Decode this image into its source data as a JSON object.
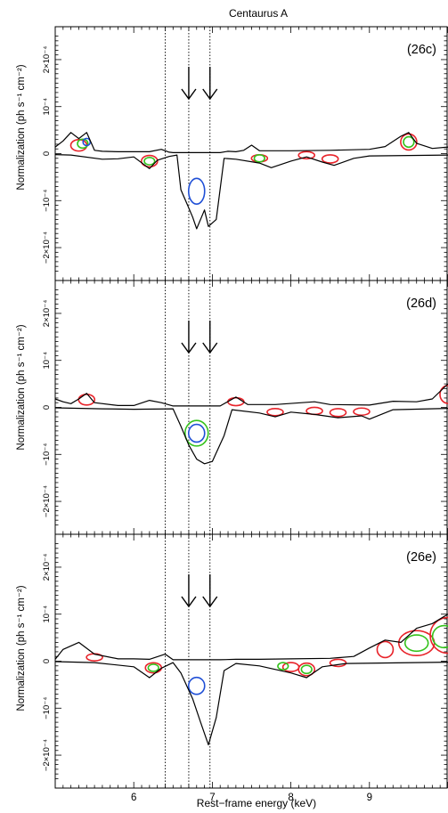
{
  "figure": {
    "title": "Centaurus A",
    "xlabel": "Rest−frame energy (keV)",
    "ylabel": "Normalization (ph s⁻¹ cm⁻²)"
  },
  "chart_data": [
    {
      "type": "line",
      "panel_label": "(26c)",
      "xlabel": "Rest−frame energy (keV)",
      "ylabel": "Normalization (ph s⁻¹ cm⁻²)",
      "xlim": [
        5.0,
        10.0
      ],
      "ylim": [
        -0.00027,
        0.00027
      ],
      "x_ticks": [
        "6",
        "7",
        "8",
        "9"
      ],
      "y_ticks": [
        "2×10⁻⁴",
        "10⁻⁴",
        "0",
        "−10⁻⁴",
        "−2×10⁻⁴"
      ],
      "vertical_lines_keV": [
        6.4,
        6.7,
        6.97
      ],
      "arrows_keV": [
        6.7,
        6.97
      ],
      "upper_envelope": [
        [
          5.0,
          1.4e-05
        ],
        [
          5.1,
          2.7e-05
        ],
        [
          5.2,
          4.5e-05
        ],
        [
          5.3,
          3.2e-05
        ],
        [
          5.4,
          4.5e-05
        ],
        [
          5.5,
          7e-06
        ],
        [
          5.6,
          5e-06
        ],
        [
          5.8,
          4e-06
        ],
        [
          6.0,
          4e-06
        ],
        [
          6.2,
          4e-06
        ],
        [
          6.35,
          9e-06
        ],
        [
          6.45,
          3e-06
        ],
        [
          6.5,
          2e-06
        ],
        [
          7.1,
          2e-06
        ],
        [
          7.2,
          5e-06
        ],
        [
          7.3,
          4e-06
        ],
        [
          7.4,
          7e-06
        ],
        [
          7.5,
          1.8e-05
        ],
        [
          7.6,
          6e-06
        ],
        [
          8.0,
          6e-06
        ],
        [
          8.5,
          7e-06
        ],
        [
          9.0,
          9e-06
        ],
        [
          9.2,
          1.5e-05
        ],
        [
          9.4,
          3.7e-05
        ],
        [
          9.5,
          4.5e-05
        ],
        [
          9.6,
          2.2e-05
        ],
        [
          9.8,
          1.1e-05
        ],
        [
          10.0,
          1.4e-05
        ]
      ],
      "lower_envelope": [
        [
          5.0,
          -2e-06
        ],
        [
          5.2,
          -3e-06
        ],
        [
          5.6,
          -1.2e-05
        ],
        [
          5.8,
          -1.1e-05
        ],
        [
          6.0,
          -7e-06
        ],
        [
          6.2,
          -3.2e-05
        ],
        [
          6.3,
          -1.4e-05
        ],
        [
          6.45,
          -6e-06
        ],
        [
          6.55,
          -3e-06
        ],
        [
          6.6,
          -7.7e-05
        ],
        [
          6.68,
          -0.000108
        ],
        [
          6.75,
          -0.000135
        ],
        [
          6.8,
          -0.00016
        ],
        [
          6.9,
          -0.00012
        ],
        [
          6.95,
          -0.000155
        ],
        [
          7.05,
          -0.00014
        ],
        [
          7.15,
          -1e-05
        ],
        [
          7.3,
          -1.2e-05
        ],
        [
          7.6,
          -2e-05
        ],
        [
          7.75,
          -3e-05
        ],
        [
          8.0,
          -1.6e-05
        ],
        [
          8.2,
          -7e-06
        ],
        [
          8.4,
          -1.8e-05
        ],
        [
          8.55,
          -2.5e-05
        ],
        [
          8.8,
          -1e-05
        ],
        [
          9.0,
          -5e-06
        ],
        [
          10.0,
          -3e-06
        ]
      ],
      "contour_levels": [
        {
          "color": "#e8232a",
          "centers_keV": [
            5.3,
            6.2,
            7.6,
            8.2,
            8.5,
            9.5
          ]
        },
        {
          "color": "#34c21c",
          "centers_keV": [
            5.35,
            6.2,
            7.6,
            9.5
          ]
        },
        {
          "color": "#1f4fd6",
          "centers_keV": [
            5.4,
            6.8
          ]
        }
      ]
    },
    {
      "type": "line",
      "panel_label": "(26d)",
      "xlabel": "Rest−frame energy (keV)",
      "ylabel": "Normalization (ph s⁻¹ cm⁻²)",
      "xlim": [
        5.0,
        10.0
      ],
      "ylim": [
        -0.00027,
        0.00027
      ],
      "x_ticks": [
        "6",
        "7",
        "8",
        "9"
      ],
      "y_ticks": [
        "2×10⁻⁴",
        "10⁻⁴",
        "0",
        "−10⁻⁴",
        "−2×10⁻⁴"
      ],
      "vertical_lines_keV": [
        6.4,
        6.7,
        6.97
      ],
      "arrows_keV": [
        6.7,
        6.97
      ],
      "upper_envelope": [
        [
          5.0,
          1.8e-05
        ],
        [
          5.1,
          1.2e-05
        ],
        [
          5.2,
          8e-06
        ],
        [
          5.3,
          1.8e-05
        ],
        [
          5.4,
          3e-05
        ],
        [
          5.5,
          1e-05
        ],
        [
          5.8,
          4e-06
        ],
        [
          6.0,
          4e-06
        ],
        [
          6.2,
          1.5e-05
        ],
        [
          6.35,
          1e-05
        ],
        [
          6.5,
          3e-06
        ],
        [
          7.1,
          3e-06
        ],
        [
          7.3,
          2.2e-05
        ],
        [
          7.45,
          6e-06
        ],
        [
          7.8,
          6e-06
        ],
        [
          8.3,
          1.2e-05
        ],
        [
          8.5,
          6e-06
        ],
        [
          9.0,
          5e-06
        ],
        [
          9.3,
          1.3e-05
        ],
        [
          9.6,
          1.2e-05
        ],
        [
          9.8,
          1.8e-05
        ],
        [
          10.0,
          5e-05
        ]
      ],
      "lower_envelope": [
        [
          5.0,
          -1e-06
        ],
        [
          5.6,
          -3e-06
        ],
        [
          6.0,
          -4e-06
        ],
        [
          6.5,
          -3e-06
        ],
        [
          6.6,
          -4e-05
        ],
        [
          6.7,
          -8e-05
        ],
        [
          6.8,
          -0.00011
        ],
        [
          6.9,
          -0.00012
        ],
        [
          7.0,
          -0.000115
        ],
        [
          7.15,
          -6e-05
        ],
        [
          7.25,
          -5e-06
        ],
        [
          7.6,
          -1.2e-05
        ],
        [
          7.8,
          -2e-05
        ],
        [
          8.0,
          -1e-05
        ],
        [
          8.3,
          -1.5e-05
        ],
        [
          8.6,
          -2.2e-05
        ],
        [
          8.9,
          -1.8e-05
        ],
        [
          9.0,
          -2.5e-05
        ],
        [
          9.3,
          -5e-06
        ],
        [
          10.0,
          -2e-06
        ]
      ],
      "contour_levels": [
        {
          "color": "#e8232a",
          "centers_keV": [
            5.4,
            7.3,
            7.8,
            8.3,
            8.6,
            8.9,
            10.0
          ]
        },
        {
          "color": "#34c21c",
          "centers_keV": [
            6.8
          ]
        },
        {
          "color": "#1f4fd6",
          "centers_keV": [
            6.8
          ]
        }
      ]
    },
    {
      "type": "line",
      "panel_label": "(26e)",
      "xlabel": "Rest−frame energy (keV)",
      "ylabel": "Normalization (ph s⁻¹ cm⁻²)",
      "xlim": [
        5.0,
        10.0
      ],
      "ylim": [
        -0.00027,
        0.00027
      ],
      "x_ticks": [
        "6",
        "7",
        "8",
        "9"
      ],
      "y_ticks": [
        "2×10⁻⁴",
        "10⁻⁴",
        "0",
        "−10⁻⁴",
        "−2×10⁻⁴"
      ],
      "vertical_lines_keV": [
        6.4,
        6.7,
        6.97
      ],
      "arrows_keV": [
        6.7,
        6.97
      ],
      "upper_envelope": [
        [
          5.0,
          4e-06
        ],
        [
          5.1,
          2.5e-05
        ],
        [
          5.3,
          4e-05
        ],
        [
          5.5,
          1.5e-05
        ],
        [
          5.8,
          5e-06
        ],
        [
          6.0,
          5e-06
        ],
        [
          6.2,
          4e-06
        ],
        [
          6.4,
          1.5e-05
        ],
        [
          6.5,
          3e-06
        ],
        [
          7.1,
          3e-06
        ],
        [
          7.3,
          4e-06
        ],
        [
          7.6,
          4e-06
        ],
        [
          8.0,
          5e-06
        ],
        [
          8.5,
          6e-06
        ],
        [
          8.8,
          1e-05
        ],
        [
          9.0,
          2.8e-05
        ],
        [
          9.2,
          4.5e-05
        ],
        [
          9.4,
          4e-05
        ],
        [
          9.6,
          7e-05
        ],
        [
          9.8,
          8e-05
        ],
        [
          10.0,
          0.0001
        ]
      ],
      "lower_envelope": [
        [
          5.0,
          -1e-06
        ],
        [
          5.5,
          -3e-06
        ],
        [
          6.0,
          -1.2e-05
        ],
        [
          6.2,
          -3.5e-05
        ],
        [
          6.35,
          -1.5e-05
        ],
        [
          6.5,
          -3e-06
        ],
        [
          6.6,
          -2.5e-05
        ],
        [
          6.75,
          -8e-05
        ],
        [
          6.85,
          -0.00013
        ],
        [
          6.95,
          -0.000178
        ],
        [
          7.05,
          -0.00012
        ],
        [
          7.15,
          -2e-05
        ],
        [
          7.3,
          -5e-06
        ],
        [
          7.6,
          -1e-05
        ],
        [
          8.0,
          -2.5e-05
        ],
        [
          8.2,
          -3.5e-05
        ],
        [
          8.4,
          -1.2e-05
        ],
        [
          8.7,
          -5e-06
        ],
        [
          10.0,
          -2e-06
        ]
      ],
      "contour_levels": [
        {
          "color": "#e8232a",
          "centers_keV": [
            5.5,
            6.25,
            8.0,
            8.2,
            8.6,
            9.2,
            9.6,
            10.0
          ]
        },
        {
          "color": "#34c21c",
          "centers_keV": [
            6.25,
            7.9,
            8.2,
            9.6,
            9.95
          ]
        },
        {
          "color": "#1f4fd6",
          "centers_keV": [
            6.8
          ]
        }
      ]
    }
  ]
}
